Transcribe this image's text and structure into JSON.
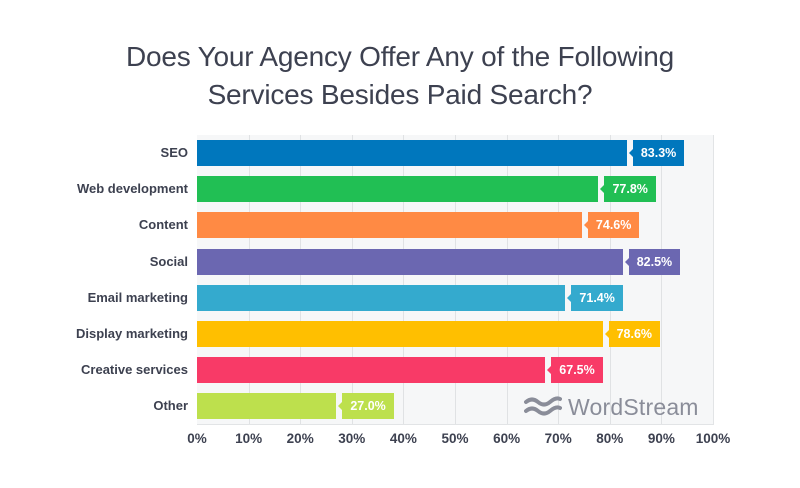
{
  "title_line1": "Does Your Agency Offer Any of the Following",
  "title_line2": "Services Besides Paid Search?",
  "logo": {
    "icon": "wordstream-waves-icon",
    "text": "WordStream",
    "color": "#8a8d99"
  },
  "chart_data": {
    "type": "bar",
    "orientation": "horizontal",
    "title": "Does Your Agency Offer Any of the Following Services Besides Paid Search?",
    "xlabel": "",
    "ylabel": "",
    "xlim": [
      0,
      100
    ],
    "grid": true,
    "legend": "none",
    "categories": [
      "SEO",
      "Web development",
      "Content",
      "Social",
      "Email marketing",
      "Display marketing",
      "Creative services",
      "Other"
    ],
    "values": [
      83.3,
      77.8,
      74.6,
      82.5,
      71.4,
      78.6,
      67.5,
      27.0
    ],
    "value_labels": [
      "83.3%",
      "77.8%",
      "74.6%",
      "82.5%",
      "71.4%",
      "78.6%",
      "67.5%",
      "27.0%"
    ],
    "colors": [
      "#0077bd",
      "#21bf54",
      "#ff8a44",
      "#6b67b1",
      "#34aace",
      "#ffbf00",
      "#f83a67",
      "#bde04d"
    ],
    "x_ticks": [
      "0%",
      "10%",
      "20%",
      "30%",
      "40%",
      "50%",
      "60%",
      "70%",
      "80%",
      "90%",
      "100%"
    ]
  }
}
